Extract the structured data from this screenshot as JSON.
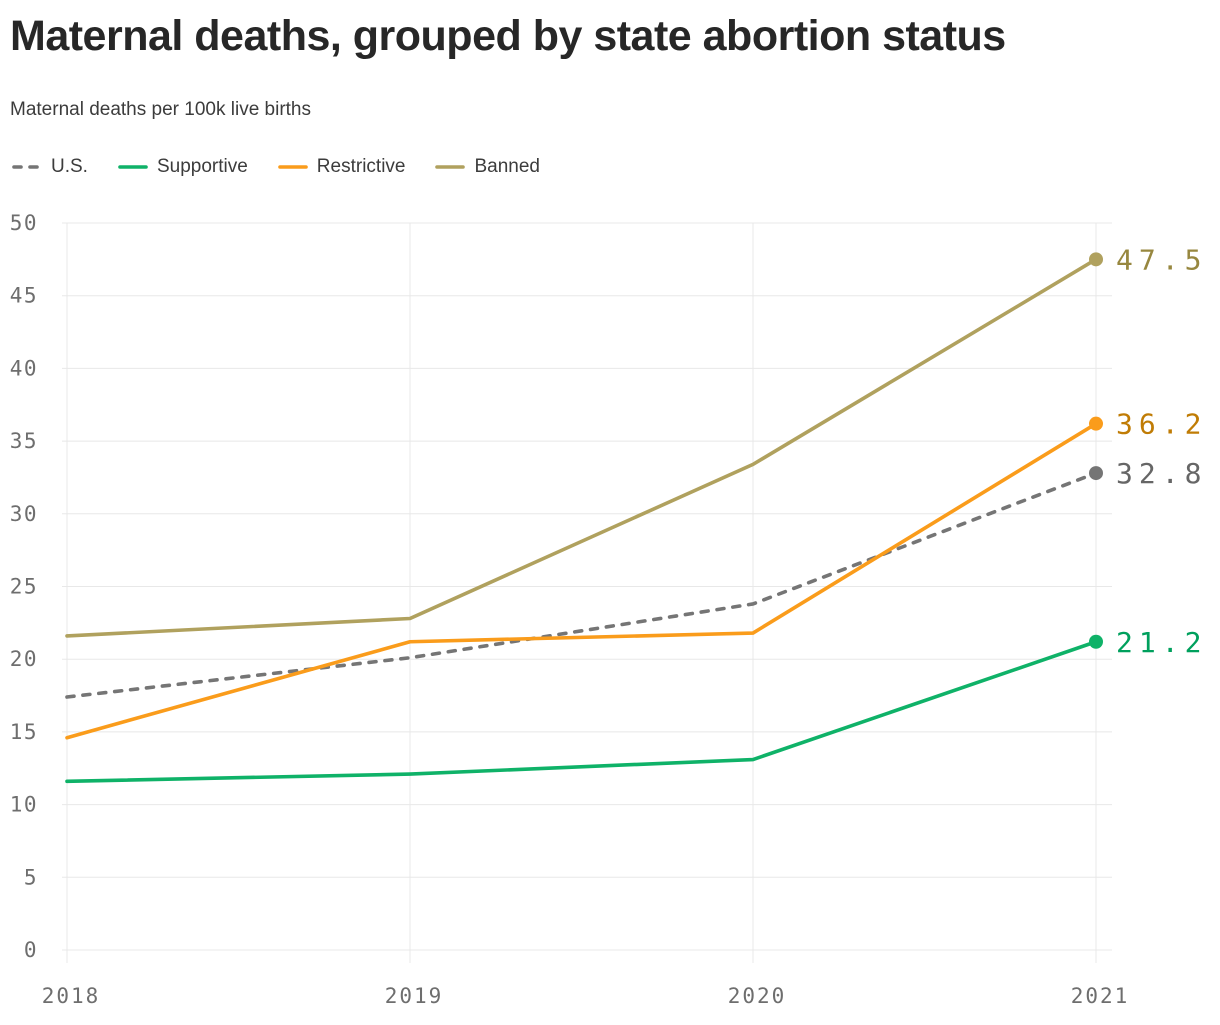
{
  "header": {
    "title": "Maternal deaths, grouped by state abortion status",
    "subtitle": "Maternal deaths per 100k live births"
  },
  "chart_data": {
    "type": "line",
    "x_labels": [
      "2018",
      "2019",
      "2020",
      "2021"
    ],
    "ylim": [
      0,
      50
    ],
    "ytick_step": 5,
    "grid": true,
    "grid_color": "#e8e8e8",
    "tick_color": "#6e6e6e",
    "legend_position": "top",
    "xlabel": "",
    "ylabel": "Maternal deaths per 100k live births",
    "series": [
      {
        "name": "U.S.",
        "values": [
          17.4,
          20.1,
          23.8,
          32.8
        ],
        "color": "#757575",
        "label_color": "#666666",
        "dashed": true,
        "end_label": "32.8"
      },
      {
        "name": "Supportive",
        "values": [
          11.6,
          12.1,
          13.1,
          21.2
        ],
        "color": "#0fb268",
        "label_color": "#00a05d",
        "dashed": false,
        "end_label": "21.2"
      },
      {
        "name": "Restrictive",
        "values": [
          14.6,
          21.2,
          21.8,
          36.2
        ],
        "color": "#fa9c1b",
        "label_color": "#c07c05",
        "dashed": false,
        "end_label": "36.2"
      },
      {
        "name": "Banned",
        "values": [
          21.6,
          22.8,
          33.4,
          47.5
        ],
        "color": "#b0a15e",
        "label_color": "#97873f",
        "dashed": false,
        "end_label": "47.5"
      }
    ]
  }
}
